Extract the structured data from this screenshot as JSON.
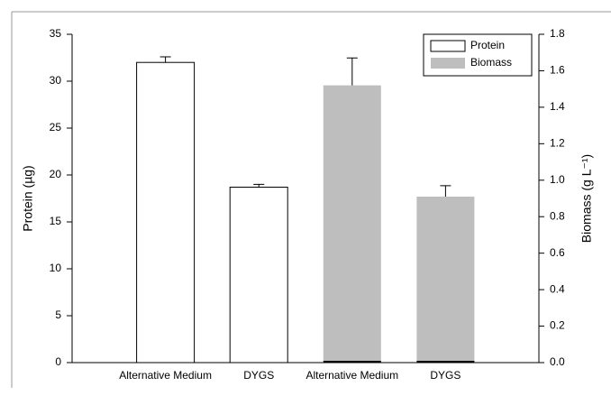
{
  "chart_data": {
    "type": "bar",
    "categories": [
      "Alternative Medium",
      "DYGS",
      "Alternative Medium",
      "DYGS"
    ],
    "ylabel": "Protein (µg)",
    "y2label": "Biomass (g L⁻¹)",
    "series": [
      {
        "name": "Protein",
        "color": "#ffffff",
        "values": [
          32.0,
          18.7,
          null,
          null
        ],
        "errors": [
          0.6,
          0.3,
          null,
          null
        ]
      },
      {
        "name": "Biomass",
        "color": "#bebebe",
        "axis": "y2",
        "values": [
          null,
          null,
          1.52,
          0.91
        ],
        "errors": [
          null,
          null,
          0.15,
          0.06
        ]
      }
    ],
    "ylim": [
      0,
      35
    ],
    "yticks": [
      0,
      5,
      10,
      15,
      20,
      25,
      30,
      35
    ],
    "y2lim": [
      0,
      1.8
    ],
    "y2ticks": [
      {
        "value": 0,
        "label": "0.0"
      },
      0.2,
      0.4,
      0.6,
      0.8,
      {
        "value": 1,
        "label": "1.0"
      },
      1.2,
      1.4,
      1.6,
      1.8
    ],
    "legend": "upper right"
  }
}
